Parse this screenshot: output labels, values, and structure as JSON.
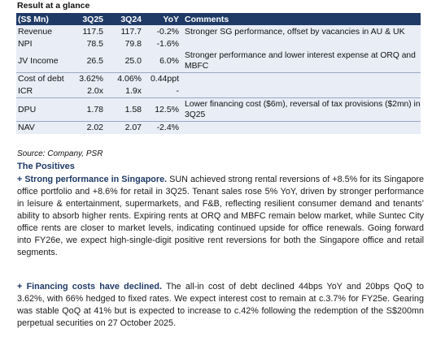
{
  "title": "Result at a glance",
  "table": {
    "headers": {
      "metric": "(S$ Mn)",
      "q325": "3Q25",
      "q324": "3Q24",
      "yoy": "YoY",
      "comments": "Comments"
    },
    "rows": [
      {
        "metric": "Revenue",
        "q325": "117.5",
        "q324": "117.7",
        "yoy": "-0.2%",
        "comments": "Stronger SG performance, offset by vacancies in AU & UK"
      },
      {
        "metric": "NPI",
        "q325": "78.5",
        "q324": "79.8",
        "yoy": "-1.6%",
        "comments": ""
      },
      {
        "metric": "JV Income",
        "q325": "26.5",
        "q324": "25.0",
        "yoy": "6.0%",
        "comments": "Stronger performance and lower interest expense at ORQ and MBFC"
      },
      {
        "metric": "Cost of debt",
        "q325": "3.62%",
        "q324": "4.06%",
        "yoy": "0.44ppt",
        "comments": ""
      },
      {
        "metric": "ICR",
        "q325": "2.0x",
        "q324": "1.9x",
        "yoy": "-",
        "comments": ""
      },
      {
        "metric": "DPU",
        "q325": "1.78",
        "q324": "1.58",
        "yoy": "12.5%",
        "comments": "Lower financing cost ($6m), reversal of tax provisions ($2mn) in 3Q25"
      },
      {
        "metric": "NAV",
        "q325": "2.02",
        "q324": "2.07",
        "yoy": "-2.4%",
        "comments": ""
      }
    ]
  },
  "source": "Source: Company, PSR",
  "section_heading": "The Positives",
  "paragraphs": [
    {
      "lead": "+ Strong performance in Singapore.",
      "body": " SUN achieved strong rental reversions of +8.5% for its Singapore office portfolio and +8.6% for retail in 3Q25. Tenant sales rose 5% YoY, driven by stronger performance in leisure & entertainment, supermarkets, and F&B, reflecting resilient consumer demand and tenants’ ability to absorb higher rents. Expiring rents at ORQ and MBFC remain below market, while Suntec City office rents are closer to market levels, indicating continued upside for office renewals. Going forward into FY26e, we expect high-single-digit positive rent reversions for both the Singapore office and retail segments."
    },
    {
      "lead": "+ Financing costs have declined.",
      "body": " The all-in cost of debt declined 44bps YoY and 20bps QoQ to 3.62%, with 66% hedged to fixed rates. We expect interest cost to remain at c.3.7% for FY25e. Gearing was stable QoQ at 41% but is expected to increase to c.42% following the redemption of the S$200mn perpetual securities on 27 October 2025."
    }
  ]
}
